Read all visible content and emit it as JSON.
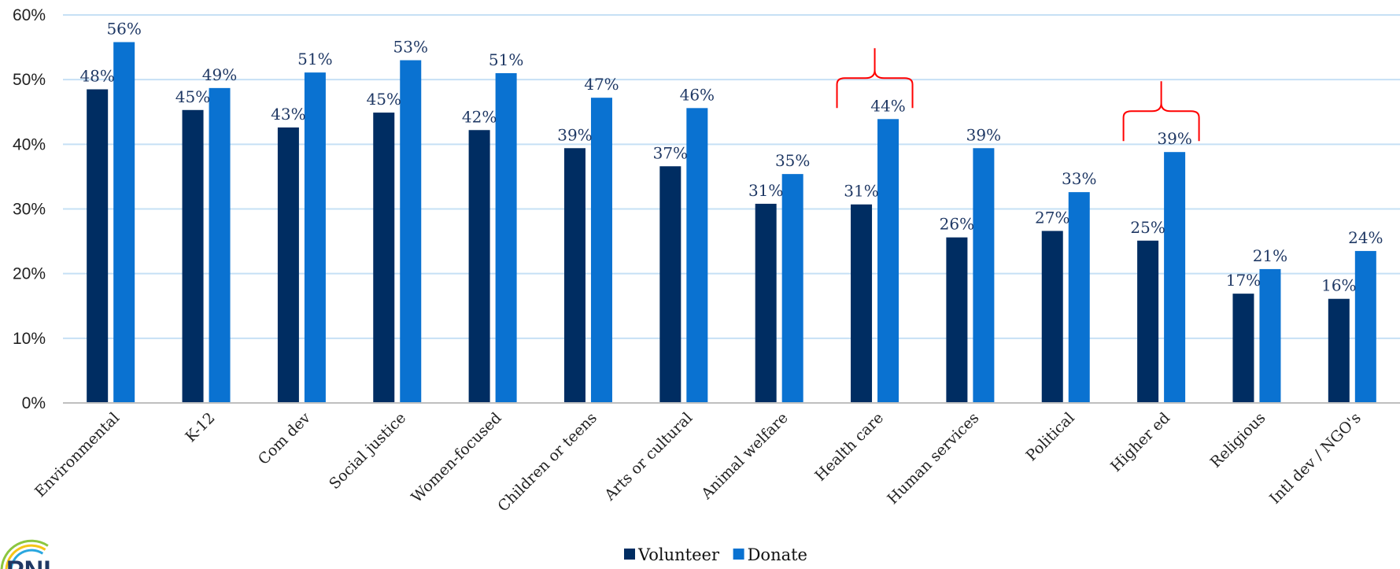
{
  "chart_data": {
    "type": "bar",
    "categories": [
      "Environmental",
      "K-12",
      "Com dev",
      "Social justice",
      "Women-focused",
      "Children or teens",
      "Arts or cultural",
      "Animal welfare",
      "Health care",
      "Human services",
      "Political",
      "Higher ed",
      "Religious",
      "Intl dev / NGO's"
    ],
    "series": [
      {
        "name": "Volunteer",
        "color": "#002d62",
        "values": [
          48.5,
          45.3,
          42.6,
          44.9,
          42.2,
          39.4,
          36.6,
          30.8,
          30.7,
          25.6,
          26.6,
          25.1,
          16.9,
          16.1
        ],
        "labels": [
          "48%",
          "45%",
          "43%",
          "45%",
          "42%",
          "39%",
          "37%",
          "31%",
          "31%",
          "26%",
          "27%",
          "25%",
          "17%",
          "16%"
        ]
      },
      {
        "name": "Donate",
        "color": "#0a72d1",
        "values": [
          55.8,
          48.7,
          51.1,
          53.0,
          51.0,
          47.2,
          45.6,
          35.4,
          43.9,
          39.4,
          32.6,
          38.8,
          20.7,
          23.5
        ],
        "labels": [
          "56%",
          "49%",
          "51%",
          "53%",
          "51%",
          "47%",
          "46%",
          "35%",
          "44%",
          "39%",
          "33%",
          "39%",
          "21%",
          "24%"
        ]
      }
    ],
    "yticks": [
      "0%",
      "10%",
      "20%",
      "30%",
      "40%",
      "50%",
      "60%"
    ],
    "ylim": [
      0,
      60
    ],
    "grid": true,
    "legend": "bottom-center",
    "annotations": [
      {
        "type": "brace",
        "color": "#ff0000",
        "category": "Health care"
      },
      {
        "type": "brace",
        "color": "#ff0000",
        "category": "Higher ed"
      }
    ]
  },
  "colors": {
    "gridline": "#c6e0f5",
    "axis": "#bfbfbf",
    "annotation": "#ff0000"
  },
  "logo": {
    "text": "PNI"
  }
}
